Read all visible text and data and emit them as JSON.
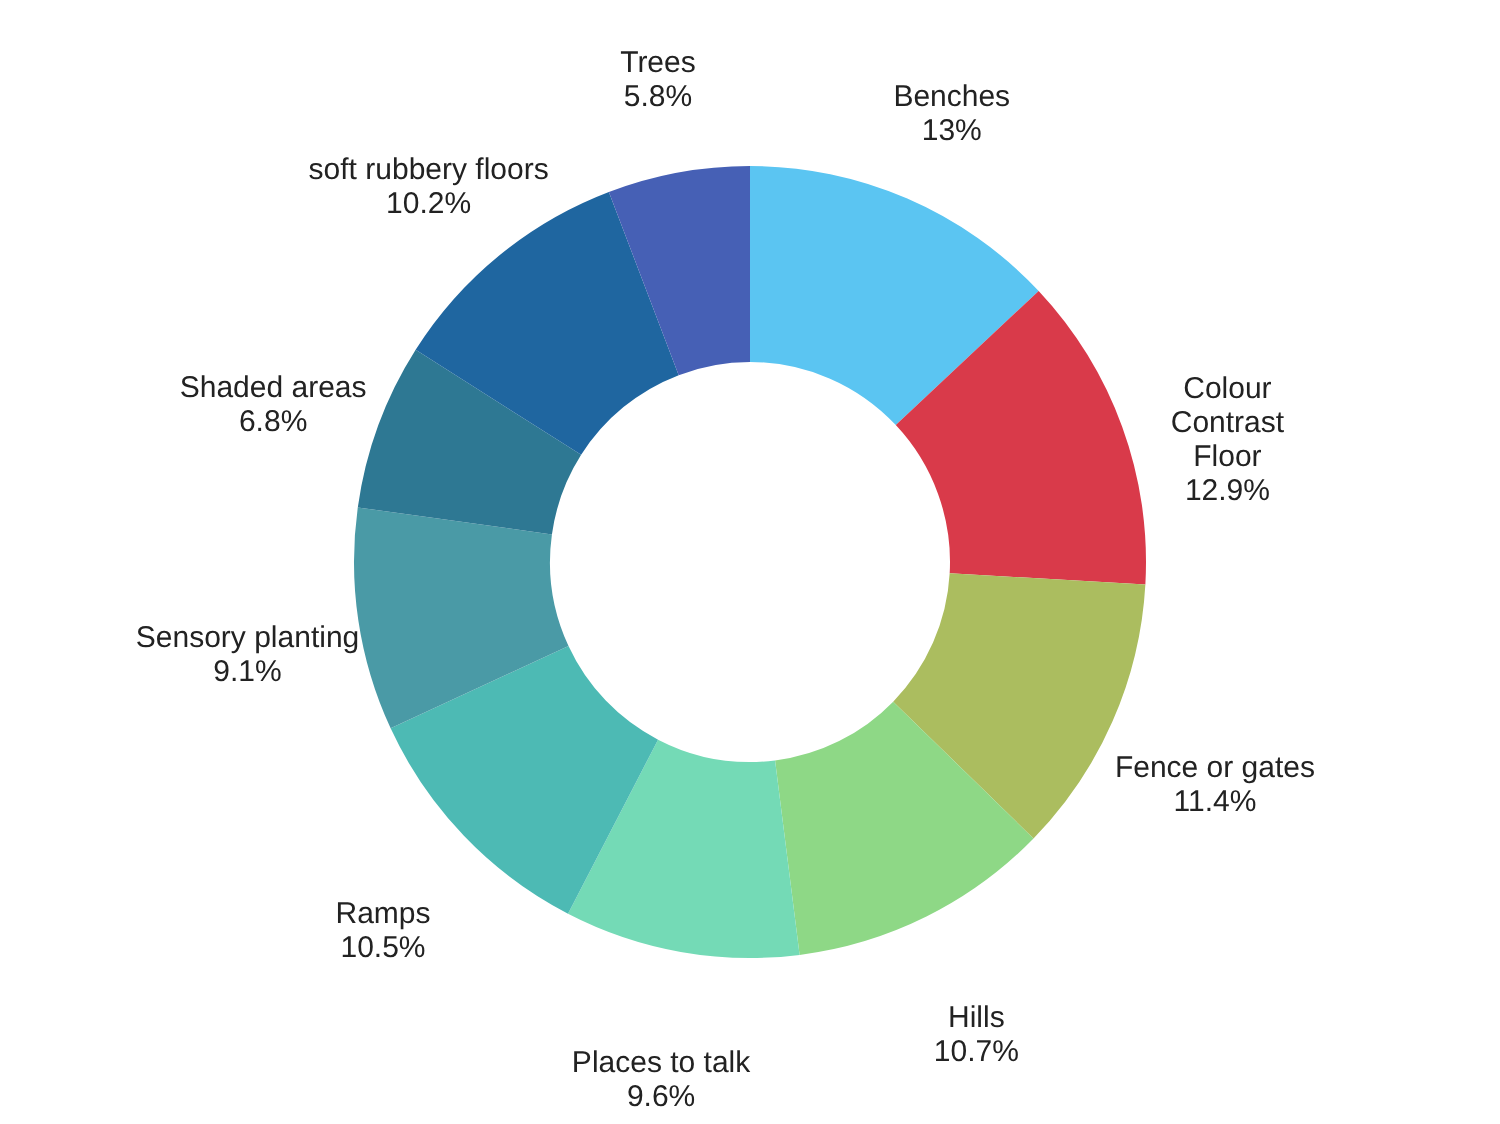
{
  "chart_data": {
    "type": "donut",
    "categories": [
      "Benches",
      "Colour Contrast Floor",
      "Fence or gates",
      "Hills",
      "Places to talk",
      "Ramps",
      "Sensory planting",
      "Shaded areas",
      "soft rubbery floors",
      "Trees"
    ],
    "values": [
      13,
      12.9,
      11.4,
      10.7,
      9.6,
      10.5,
      9.1,
      6.8,
      10.2,
      5.8
    ],
    "value_labels": [
      "13%",
      "12.9%",
      "11.4%",
      "10.7%",
      "9.6%",
      "10.5%",
      "9.1%",
      "6.8%",
      "10.2%",
      "5.8%"
    ],
    "colors": [
      "#5bc5f2",
      "#d93a4a",
      "#abbd5f",
      "#8ed886",
      "#74dab6",
      "#4dbab4",
      "#4a9aa6",
      "#2e7893",
      "#1f66a0",
      "#4660b5"
    ],
    "data_labels": true
  }
}
